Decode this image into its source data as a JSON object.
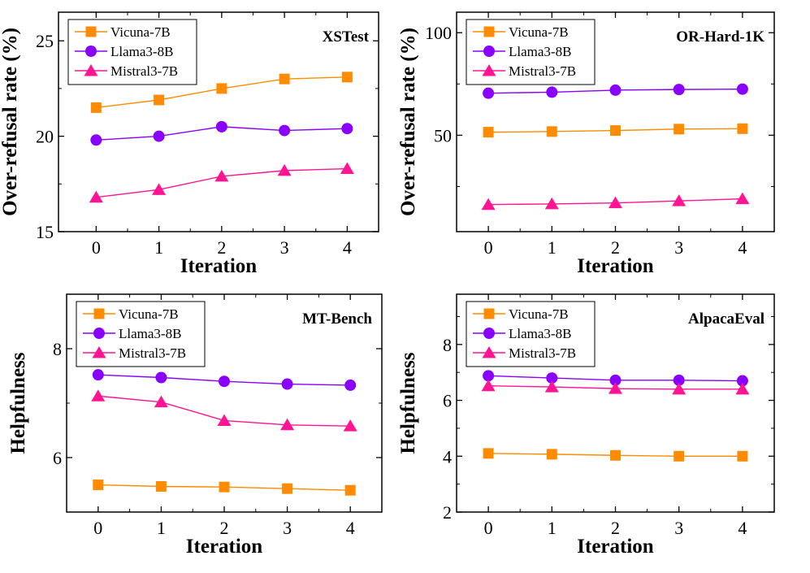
{
  "chart_data": [
    {
      "type": "line",
      "title": "XSTest",
      "xlabel": "Iteration",
      "ylabel": "Over-refusal rate (%)",
      "x": [
        0,
        1,
        2,
        3,
        4
      ],
      "xlim": [
        -0.6,
        4.5
      ],
      "ylim": [
        15,
        26.5
      ],
      "yticks": [
        15,
        20,
        25
      ],
      "xticks": [
        0,
        1,
        2,
        3,
        4
      ],
      "legend_position": "top-left",
      "series": [
        {
          "name": "Vicuna-7B",
          "marker": "square",
          "color": "#ff8c00",
          "values": [
            21.5,
            21.9,
            22.5,
            23.0,
            23.1
          ]
        },
        {
          "name": "Llama3-8B",
          "marker": "circle",
          "color": "#8a00ff",
          "values": [
            19.8,
            20.0,
            20.5,
            20.3,
            20.4
          ]
        },
        {
          "name": "Mistral3-7B",
          "marker": "triangle",
          "color": "#ff1493",
          "values": [
            16.8,
            17.2,
            17.9,
            18.2,
            18.3
          ]
        }
      ]
    },
    {
      "type": "line",
      "title": "OR-Hard-1K",
      "xlabel": "Iteration",
      "ylabel": "Over-refusal rate (%)",
      "x": [
        0,
        1,
        2,
        3,
        4
      ],
      "xlim": [
        -0.5,
        4.5
      ],
      "ylim": [
        3,
        110
      ],
      "yticks": [
        50,
        100
      ],
      "xticks": [
        0,
        1,
        2,
        3,
        4
      ],
      "legend_position": "top-left",
      "series": [
        {
          "name": "Vicuna-7B",
          "marker": "square",
          "color": "#ff8c00",
          "values": [
            51.5,
            51.8,
            52.3,
            53.0,
            53.2
          ]
        },
        {
          "name": "Llama3-8B",
          "marker": "circle",
          "color": "#8a00ff",
          "values": [
            70.5,
            71.0,
            72.0,
            72.3,
            72.5
          ]
        },
        {
          "name": "Mistral3-7B",
          "marker": "triangle",
          "color": "#ff1493",
          "values": [
            16.2,
            16.5,
            17.0,
            18.0,
            19.0
          ]
        }
      ]
    },
    {
      "type": "line",
      "title": "MT-Bench",
      "xlabel": "Iteration",
      "ylabel": "Helpfulness",
      "x": [
        0,
        1,
        2,
        3,
        4
      ],
      "xlim": [
        -0.5,
        4.5
      ],
      "ylim": [
        5.0,
        9.0
      ],
      "yticks": [
        6,
        8
      ],
      "xticks": [
        0,
        1,
        2,
        3,
        4
      ],
      "legend_position": "top-left",
      "series": [
        {
          "name": "Vicuna-7B",
          "marker": "square",
          "color": "#ff8c00",
          "values": [
            5.5,
            5.47,
            5.46,
            5.43,
            5.4
          ]
        },
        {
          "name": "Llama3-8B",
          "marker": "circle",
          "color": "#8a00ff",
          "values": [
            7.52,
            7.47,
            7.4,
            7.35,
            7.33
          ]
        },
        {
          "name": "Mistral3-7B",
          "marker": "triangle",
          "color": "#ff1493",
          "values": [
            7.13,
            7.02,
            6.68,
            6.6,
            6.58
          ]
        }
      ]
    },
    {
      "type": "line",
      "title": "AlpacaEval",
      "xlabel": "Iteration",
      "ylabel": "Helpfulness",
      "x": [
        0,
        1,
        2,
        3,
        4
      ],
      "xlim": [
        -0.5,
        4.5
      ],
      "ylim": [
        2,
        9.8
      ],
      "yticks": [
        2,
        4,
        6,
        8
      ],
      "xticks": [
        0,
        1,
        2,
        3,
        4
      ],
      "legend_position": "top-left",
      "series": [
        {
          "name": "Vicuna-7B",
          "marker": "square",
          "color": "#ff8c00",
          "values": [
            4.1,
            4.07,
            4.03,
            4.0,
            4.0
          ]
        },
        {
          "name": "Llama3-8B",
          "marker": "circle",
          "color": "#8a00ff",
          "values": [
            6.88,
            6.8,
            6.72,
            6.72,
            6.7
          ]
        },
        {
          "name": "Mistral3-7B",
          "marker": "triangle",
          "color": "#ff1493",
          "values": [
            6.52,
            6.48,
            6.42,
            6.4,
            6.4
          ]
        }
      ]
    }
  ]
}
